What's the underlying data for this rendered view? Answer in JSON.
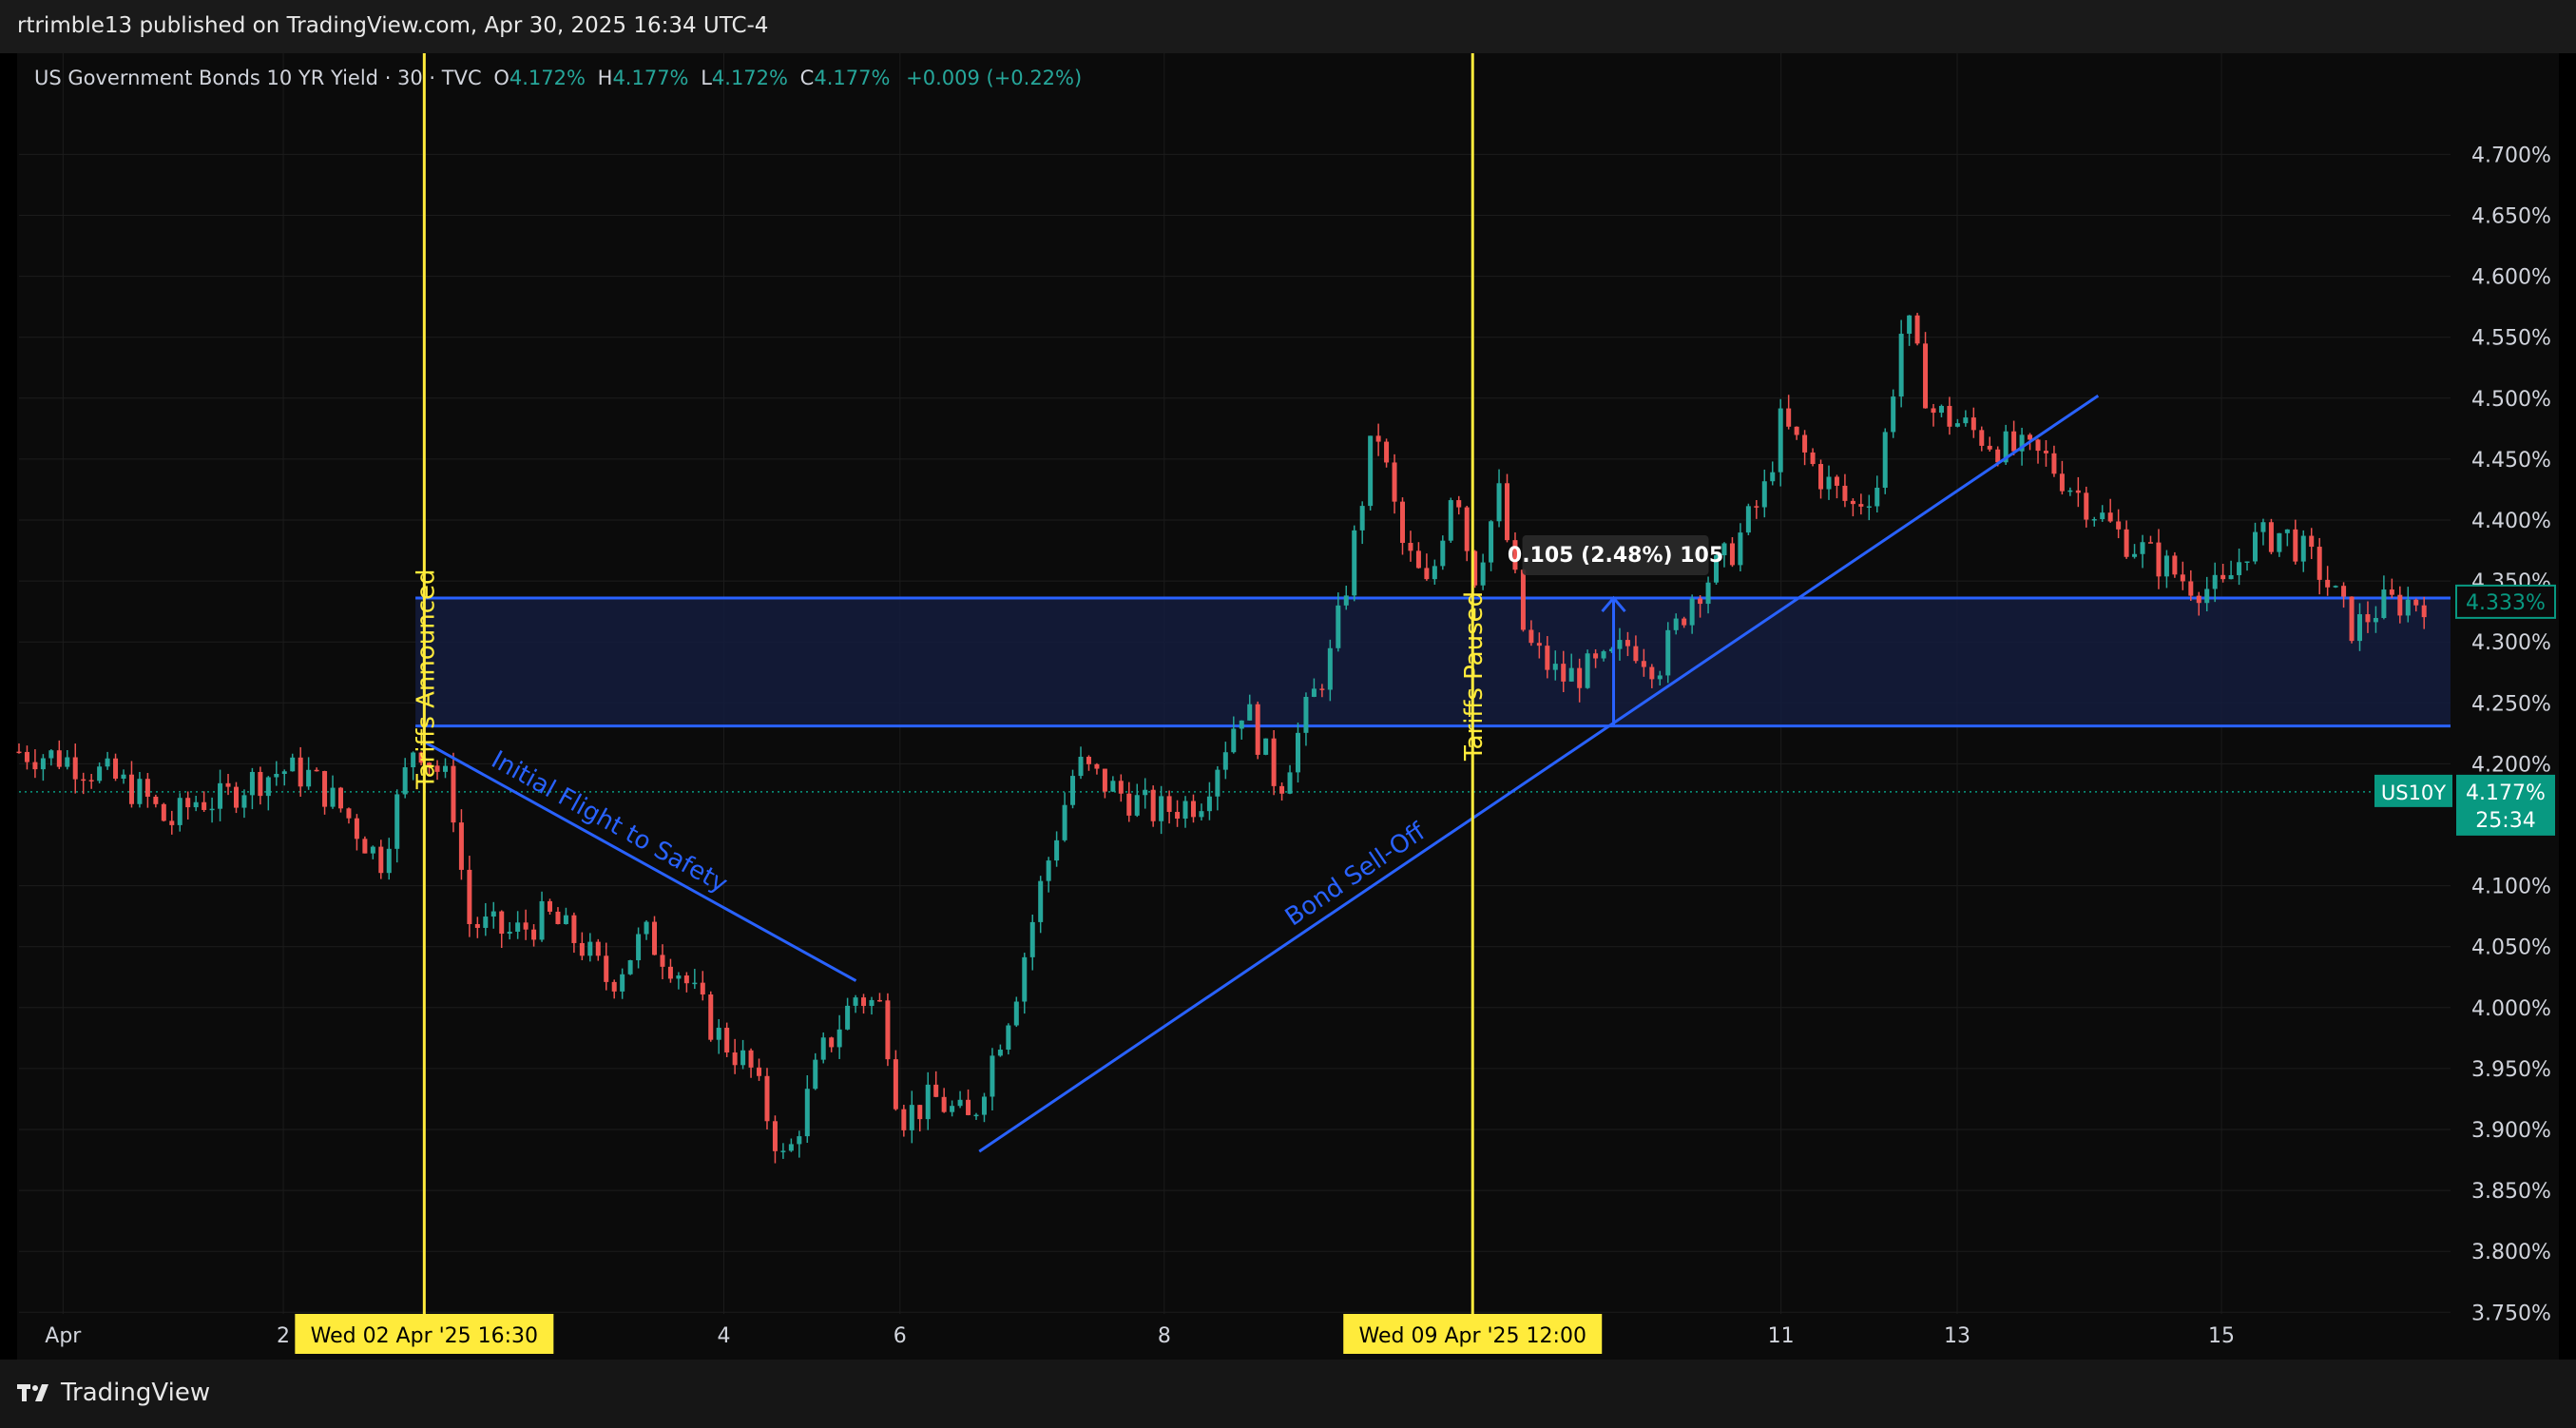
{
  "header": {
    "publisher_line": "rtrimble13 published on TradingView.com, Apr 30, 2025 16:34 UTC-4"
  },
  "legend": {
    "symbol": "US Government Bonds 10 YR Yield · 30 · TVC",
    "o_label": "O",
    "o_value": "4.172%",
    "h_label": "H",
    "h_value": "4.177%",
    "l_label": "L",
    "l_value": "4.172%",
    "c_label": "C",
    "c_value": "4.177%",
    "change": "+0.009 (+0.22%)"
  },
  "footer": {
    "logo_text": "TradingView"
  },
  "colors": {
    "up": "#26a69a",
    "down": "#ef5350",
    "drawing": "#2962ff",
    "event_line": "#ffeb3b",
    "zone_fill": "#141c3d",
    "price_badge": "#089981"
  },
  "chart_data": {
    "type": "candlestick",
    "title": "US Government Bonds 10 YR Yield",
    "interval": "30",
    "source": "TVC",
    "ylim": [
      3.7,
      4.72
    ],
    "y_ticks": [
      "4.700%",
      "4.650%",
      "4.600%",
      "4.550%",
      "4.500%",
      "4.450%",
      "4.400%",
      "4.350%",
      "4.300%",
      "4.250%",
      "4.200%",
      "4.100%",
      "4.050%",
      "4.000%",
      "3.950%",
      "3.900%",
      "3.850%",
      "3.800%",
      "3.750%"
    ],
    "x_ticks": [
      {
        "label": "Apr",
        "t": 0.5
      },
      {
        "label": "2",
        "t": 3
      },
      {
        "label": "4",
        "t": 8
      },
      {
        "label": "6",
        "t": 10
      },
      {
        "label": "8",
        "t": 13
      },
      {
        "label": "11",
        "t": 20
      },
      {
        "label": "13",
        "t": 22
      },
      {
        "label": "15",
        "t": 25
      }
    ],
    "x_range": [
      0,
      27.6
    ],
    "series_points": [
      [
        0,
        4.21
      ],
      [
        0.5,
        4.205
      ],
      [
        1.0,
        4.19
      ],
      [
        1.4,
        4.175
      ],
      [
        1.7,
        4.15
      ],
      [
        2.0,
        4.17
      ],
      [
        2.3,
        4.17
      ],
      [
        2.6,
        4.185
      ],
      [
        3.0,
        4.195
      ],
      [
        3.3,
        4.19
      ],
      [
        3.7,
        4.16
      ],
      [
        4.1,
        4.12
      ],
      [
        4.5,
        4.22
      ],
      [
        4.9,
        4.18
      ],
      [
        5.1,
        4.07
      ],
      [
        5.6,
        4.06
      ],
      [
        6.0,
        4.075
      ],
      [
        6.4,
        4.05
      ],
      [
        6.7,
        4.02
      ],
      [
        7.1,
        4.06
      ],
      [
        7.5,
        4.03
      ],
      [
        7.9,
        3.98
      ],
      [
        8.3,
        3.95
      ],
      [
        8.7,
        3.87
      ],
      [
        9.1,
        3.96
      ],
      [
        9.5,
        4.01
      ],
      [
        9.8,
        4.0
      ],
      [
        10.0,
        3.91
      ],
      [
        10.4,
        3.925
      ],
      [
        10.8,
        3.905
      ],
      [
        11.0,
        3.95
      ],
      [
        11.3,
        4.01
      ],
      [
        11.6,
        4.1
      ],
      [
        12.0,
        4.2
      ],
      [
        12.4,
        4.18
      ],
      [
        12.9,
        4.16
      ],
      [
        13.4,
        4.17
      ],
      [
        13.9,
        4.25
      ],
      [
        14.3,
        4.18
      ],
      [
        14.6,
        4.24
      ],
      [
        14.9,
        4.29
      ],
      [
        15.1,
        4.36
      ],
      [
        15.4,
        4.48
      ],
      [
        15.7,
        4.38
      ],
      [
        16.0,
        4.34
      ],
      [
        16.3,
        4.44
      ],
      [
        16.5,
        4.35
      ],
      [
        16.8,
        4.42
      ],
      [
        17.1,
        4.3
      ],
      [
        17.5,
        4.27
      ],
      [
        18.0,
        4.28
      ],
      [
        18.3,
        4.3
      ],
      [
        18.6,
        4.28
      ],
      [
        19.0,
        4.34
      ],
      [
        19.4,
        4.37
      ],
      [
        19.8,
        4.42
      ],
      [
        20.0,
        4.48
      ],
      [
        20.4,
        4.44
      ],
      [
        20.8,
        4.41
      ],
      [
        21.1,
        4.43
      ],
      [
        21.4,
        4.57
      ],
      [
        21.7,
        4.49
      ],
      [
        22.0,
        4.48
      ],
      [
        22.5,
        4.46
      ],
      [
        23.0,
        4.45
      ],
      [
        23.4,
        4.42
      ],
      [
        23.8,
        4.39
      ],
      [
        24.2,
        4.37
      ],
      [
        24.6,
        4.35
      ],
      [
        25.0,
        4.34
      ],
      [
        25.3,
        4.38
      ],
      [
        25.7,
        4.39
      ],
      [
        26.1,
        4.36
      ],
      [
        26.5,
        4.31
      ],
      [
        26.8,
        4.33
      ],
      [
        27.3,
        4.335
      ]
    ],
    "last_close": 4.177,
    "shaded_zone": {
      "from": 4.231,
      "to": 4.336,
      "t_start": 4.5,
      "t_end": 27.6
    },
    "measure": {
      "label": "0.105 (2.48%) 105",
      "from": 4.231,
      "to": 4.336,
      "t": 18.1
    },
    "event_lines": [
      {
        "t": 4.6,
        "vertical_label": "Tariffs Announced",
        "date_badge": "Wed 02 Apr '25   16:30"
      },
      {
        "t": 16.5,
        "vertical_label": "Tariffs Paused",
        "date_badge": "Wed 09 Apr '25   12:00"
      }
    ],
    "trend_lines": [
      {
        "name": "Initial Flight to Safety",
        "from": [
          4.6,
          4.218
        ],
        "to": [
          9.5,
          4.022
        ]
      },
      {
        "name": "Bond Sell-Off",
        "from": [
          10.9,
          3.882
        ],
        "to": [
          23.6,
          4.502
        ]
      }
    ],
    "price_badges": [
      {
        "text": "4.333%",
        "value": 4.333,
        "style": "outline"
      },
      {
        "symbol": "US10Y",
        "text": "4.177%",
        "countdown": "25:34",
        "value": 4.177,
        "style": "filled"
      }
    ]
  }
}
